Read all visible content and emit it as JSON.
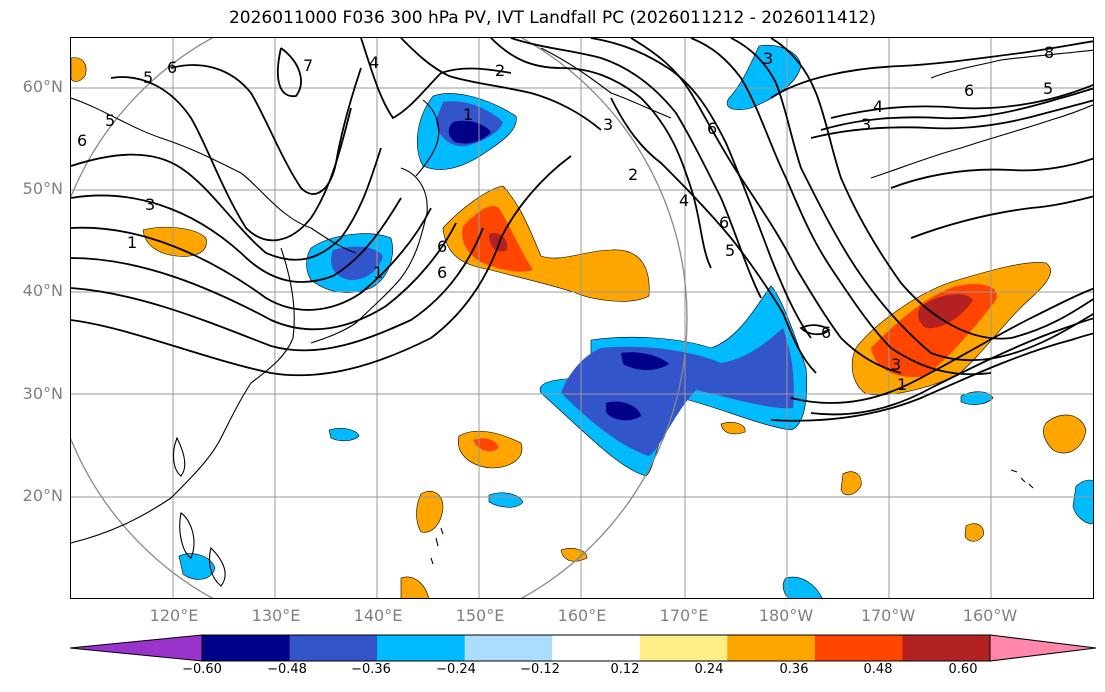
{
  "title": "2026011000 F036 300 hPa PV, IVT Landfall PC (2026011212 - 2026011412)",
  "lat_labels": [
    "60°N",
    "50°N",
    "40°N",
    "30°N",
    "20°N"
  ],
  "lon_labels": [
    "120°E",
    "130°E",
    "140°E",
    "150°E",
    "160°E",
    "170°E",
    "180°W",
    "170°W",
    "160°W"
  ],
  "contour_labels": [
    "6",
    "5",
    "5",
    "6",
    "3",
    "1",
    "7",
    "4",
    "2",
    "1",
    "6",
    "2",
    "4",
    "6",
    "5",
    "3",
    "6",
    "3",
    "8",
    "6",
    "5",
    "4",
    "3",
    "6",
    "3",
    "1",
    "6",
    "1"
  ],
  "colorbar": {
    "ticks": [
      "−0.60",
      "−0.48",
      "−0.36",
      "−0.24",
      "−0.12",
      "0.12",
      "0.24",
      "0.36",
      "0.48",
      "0.60"
    ],
    "colors": [
      "#9933cc",
      "#000088",
      "#3355cc",
      "#00bbff",
      "#aaddff",
      "#ffffff",
      "#ffee88",
      "#ffa500",
      "#ff4500",
      "#b22222",
      "#ff88aa"
    ]
  }
}
